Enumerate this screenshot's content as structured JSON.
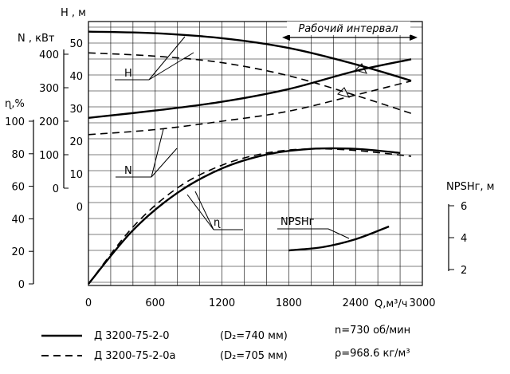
{
  "chart_data": {
    "type": "line",
    "x": {
      "label": "Q,м³/ч",
      "ticks": [
        "0",
        "600",
        "1200",
        "1800",
        "2400",
        "3000"
      ],
      "range": [
        0,
        3000
      ]
    },
    "axes": {
      "H": {
        "label": "H , м",
        "ticks": [
          "0",
          "10",
          "20",
          "30",
          "40",
          "50"
        ],
        "range": [
          0,
          55
        ]
      },
      "N": {
        "label": "N , кВт",
        "ticks": [
          "0",
          "100",
          "200",
          "300",
          "400"
        ],
        "range": [
          0,
          400
        ]
      },
      "eta": {
        "label": "ɳ,%",
        "ticks": [
          "0",
          "20",
          "40",
          "60",
          "80",
          "100"
        ],
        "range": [
          0,
          100
        ]
      },
      "NPSH": {
        "label": "NPSHг, м",
        "ticks": [
          "2",
          "4",
          "6"
        ],
        "range": [
          2,
          6
        ]
      }
    },
    "working_interval": {
      "label": "Рабочий интервал",
      "range": [
        1800,
        3000
      ]
    },
    "curve_labels": {
      "H": "H",
      "N": "N",
      "eta": "ɳ",
      "NPSH": "NPSHг"
    },
    "series": [
      {
        "name": "Д 3200-75-2-0",
        "axis": "H",
        "style": "solid",
        "points": [
          [
            0,
            53.5
          ],
          [
            600,
            53.0
          ],
          [
            1200,
            51.5
          ],
          [
            1800,
            48.5
          ],
          [
            2400,
            43.5
          ],
          [
            2900,
            38.5
          ]
        ]
      },
      {
        "name": "Д 3200-75-2-0а",
        "axis": "H",
        "style": "dashed",
        "points": [
          [
            0,
            47.0
          ],
          [
            600,
            46.0
          ],
          [
            1200,
            44.0
          ],
          [
            1800,
            40.0
          ],
          [
            2400,
            34.0
          ],
          [
            2900,
            28.5
          ]
        ]
      },
      {
        "name": "Д 3200-75-2-0",
        "axis": "N",
        "style": "solid",
        "points": [
          [
            0,
            210
          ],
          [
            600,
            232
          ],
          [
            1200,
            258
          ],
          [
            1800,
            296
          ],
          [
            2400,
            350
          ],
          [
            2900,
            385
          ]
        ]
      },
      {
        "name": "Д 3200-75-2-0а",
        "axis": "N",
        "style": "dashed",
        "points": [
          [
            0,
            160
          ],
          [
            600,
            175
          ],
          [
            1200,
            200
          ],
          [
            1800,
            230
          ],
          [
            2400,
            278
          ],
          [
            2900,
            320
          ]
        ]
      },
      {
        "name": "Д 3200-75-2-0",
        "axis": "eta",
        "style": "solid",
        "points": [
          [
            0,
            0
          ],
          [
            400,
            33
          ],
          [
            800,
            56
          ],
          [
            1200,
            71
          ],
          [
            1600,
            79.5
          ],
          [
            2000,
            83
          ],
          [
            2400,
            83
          ],
          [
            2800,
            80.5
          ]
        ]
      },
      {
        "name": "Д 3200-75-2-0а",
        "axis": "eta",
        "style": "dashed",
        "points": [
          [
            0,
            0
          ],
          [
            400,
            35
          ],
          [
            800,
            59
          ],
          [
            1200,
            73
          ],
          [
            1600,
            80.5
          ],
          [
            2000,
            83
          ],
          [
            2400,
            82
          ],
          [
            2900,
            78.5
          ]
        ]
      },
      {
        "name": "NPSHг",
        "axis": "NPSH",
        "style": "solid",
        "points": [
          [
            1800,
            3.2
          ],
          [
            2100,
            3.4
          ],
          [
            2400,
            3.9
          ],
          [
            2700,
            4.7
          ]
        ]
      }
    ]
  },
  "legend": [
    {
      "style": "solid",
      "text": "Д  3200-75-2-0",
      "param": "(D₂=740 мм)"
    },
    {
      "style": "dashed",
      "text": "Д  3200-75-2-0а",
      "param": "(D₂=705 мм)"
    }
  ],
  "conditions": [
    "n=730 об/мин",
    "ρ=968.6 кг/м³"
  ]
}
